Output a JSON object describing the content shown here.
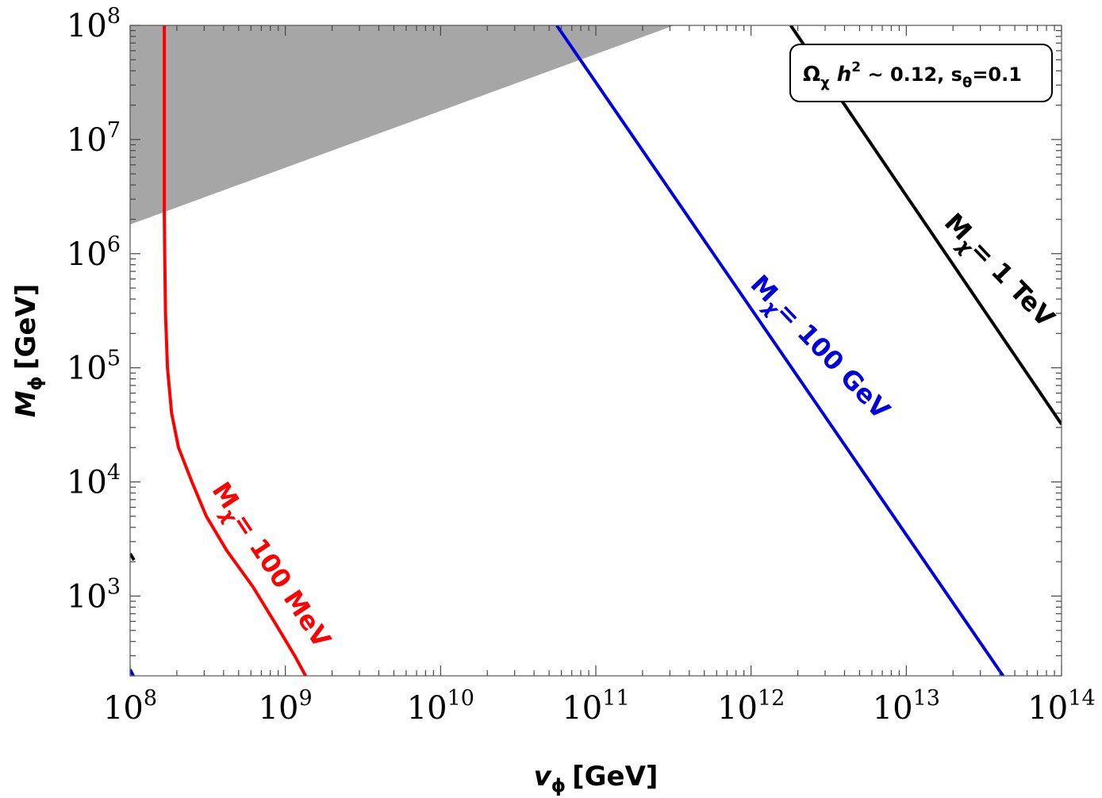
{
  "chart_data": {
    "type": "line",
    "xscale": "log",
    "yscale": "log",
    "xlim": [
      100000000.0,
      100000000000000.0
    ],
    "ylim": [
      200,
      100000000.0
    ],
    "xlabel": {
      "main": "v",
      "sub": "ϕ",
      "unit": "[GeV]"
    },
    "ylabel": {
      "main": "M",
      "sub": "ϕ",
      "unit": "[GeV]"
    },
    "x_ticks": [
      {
        "base": "10",
        "exp": "8",
        "value": 100000000.0
      },
      {
        "base": "10",
        "exp": "9",
        "value": 1000000000.0
      },
      {
        "base": "10",
        "exp": "10",
        "value": 10000000000.0
      },
      {
        "base": "10",
        "exp": "11",
        "value": 100000000000.0
      },
      {
        "base": "10",
        "exp": "12",
        "value": 1000000000000.0
      },
      {
        "base": "10",
        "exp": "13",
        "value": 10000000000000.0
      },
      {
        "base": "10",
        "exp": "14",
        "value": 100000000000000.0
      }
    ],
    "y_ticks": [
      {
        "base": "10",
        "exp": "3",
        "value": 1000.0
      },
      {
        "base": "10",
        "exp": "4",
        "value": 10000.0
      },
      {
        "base": "10",
        "exp": "5",
        "value": 100000.0
      },
      {
        "base": "10",
        "exp": "6",
        "value": 1000000.0
      },
      {
        "base": "10",
        "exp": "7",
        "value": 10000000.0
      },
      {
        "base": "10",
        "exp": "8",
        "value": 100000000.0
      }
    ],
    "legend": {
      "text_omega": "Ω",
      "text_omega_sub": "χ",
      "text_h": " h",
      "text_h_sup": "2",
      "text_mid": " ~ 0.12, s",
      "text_s_sub": "θ",
      "text_end": "=0.1",
      "placement": "top-right"
    },
    "excluded_region": {
      "color": "#a6a6a6",
      "points": [
        [
          100000000.0,
          1800000.0
        ],
        [
          320000000000.0,
          100000000.0
        ],
        [
          100000000.0,
          100000000.0
        ]
      ]
    },
    "series": [
      {
        "name": "M_χ = 100 MeV",
        "label_main": "M",
        "label_sub": "χ",
        "label_rest": "= 100 MeV",
        "color": "#ff0000",
        "points": [
          [
            166000000.0,
            100000000.0
          ],
          [
            166000000.0,
            2300000.0
          ],
          [
            167000000.0,
            1000000.0
          ],
          [
            169000000.0,
            300000.0
          ],
          [
            174000000.0,
            100000.0
          ],
          [
            185000000.0,
            40000.0
          ],
          [
            205000000.0,
            20000.0
          ],
          [
            250000000.0,
            10000.0
          ],
          [
            310000000.0,
            5000.0
          ],
          [
            420000000.0,
            2500.0
          ],
          [
            620000000.0,
            1200.0
          ],
          [
            880000000.0,
            550.0
          ],
          [
            1150000000.0,
            300.0
          ],
          [
            1350000000.0,
            200.0
          ]
        ]
      },
      {
        "name": "M_χ = 100 GeV",
        "label_main": "M",
        "label_sub": "χ",
        "label_rest": "= 100 GeV",
        "color": "#0000dd",
        "points": [
          [
            56000000000.0,
            100000000.0
          ],
          [
            42000000000000.0,
            200.0
          ]
        ]
      },
      {
        "name": "M_χ = 1 TeV",
        "label_main": "M",
        "label_sub": "χ",
        "label_rest": "= 1 TeV",
        "color": "#000000",
        "points": [
          [
            1800000000000.0,
            100000000.0
          ],
          [
            100000000000000.0,
            32000.0
          ]
        ]
      }
    ]
  }
}
